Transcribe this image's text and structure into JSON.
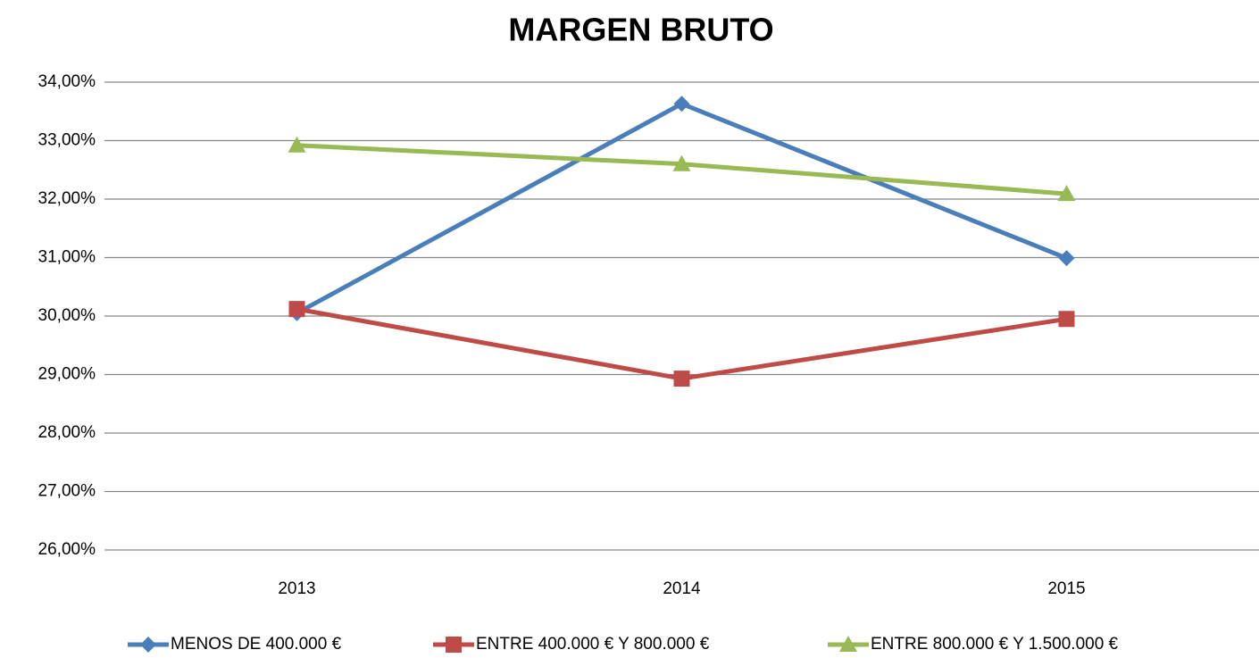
{
  "chart_data": {
    "type": "line",
    "title": "MARGEN BRUTO",
    "categories": [
      "2013",
      "2014",
      "2015"
    ],
    "series": [
      {
        "name": "MENOS DE 400.000 €",
        "color": "#4a7ebb",
        "marker": "diamond",
        "values": [
          30.05,
          33.63,
          30.99
        ]
      },
      {
        "name": "ENTRE 400.000 € Y 800.000 €",
        "color": "#be4b48",
        "marker": "square",
        "values": [
          30.12,
          28.93,
          29.95
        ]
      },
      {
        "name": "ENTRE 800.000 € Y 1.500.000 €",
        "color": "#98b954",
        "marker": "triangle",
        "values": [
          32.92,
          32.6,
          32.09
        ]
      }
    ],
    "ylim": [
      26,
      34
    ],
    "yticks": [
      {
        "value": 26,
        "label": "26,00%"
      },
      {
        "value": 27,
        "label": "27,00%"
      },
      {
        "value": 28,
        "label": "28,00%"
      },
      {
        "value": 29,
        "label": "29,00%"
      },
      {
        "value": 30,
        "label": "30,00%"
      },
      {
        "value": 31,
        "label": "31,00%"
      },
      {
        "value": 32,
        "label": "32,00%"
      },
      {
        "value": 33,
        "label": "33,00%"
      },
      {
        "value": 34,
        "label": "34,00%"
      }
    ],
    "grid": true,
    "legend": "bottom"
  }
}
